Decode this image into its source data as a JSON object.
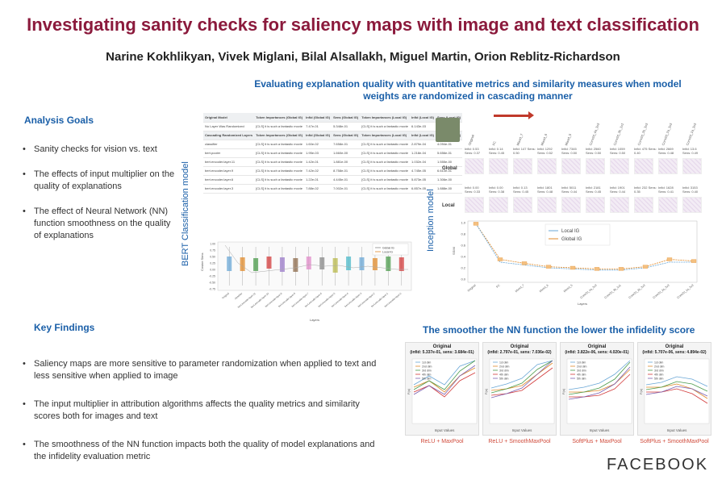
{
  "header": {
    "title": "Investigating sanity checks for saliency maps with image and text classification",
    "authors": "Narine Kokhlikyan, Vivek Miglani, Bilal Alsallakh, Miguel Martin, Orion Reblitz-Richardson",
    "subtitle": "Evaluating explanation quality with quantitative metrics and similarity measures when model weights are randomized in cascading manner"
  },
  "analysis_goals": {
    "heading": "Analysis Goals",
    "items": [
      "Sanity checks for vision vs. text",
      "The effects of input multiplier on the quality of explanations",
      "The effect of Neural Network (NN) function smoothness on the quality of explanations"
    ]
  },
  "key_findings": {
    "heading": "Key Findings",
    "items": [
      "Saliency maps are more sensitive to parameter randomization when applied to text and less sensitive when applied to image",
      "The input multiplier in attribution algorithms affects the quality metrics and similarity scores both for images and text",
      "The smoothness of the NN function impacts both the quality of model explanations and the infidelity evaluation metric"
    ]
  },
  "bert_panel": {
    "side_label": "BERT Classification model",
    "table_headers": [
      "Original Model",
      "Token Importances (Global IG)",
      "Infid (Global IG)",
      "Sens (Global IG)",
      "Token Importances (Local IG)",
      "Infid (Local IG)",
      "Sens (Local IG)"
    ],
    "cascade_header": [
      "Cascading Randomized Layers",
      "Token Importances (Global IG)",
      "Infid (Global IG)",
      "Sens (Global IG)",
      "Token Importances (Local IG)",
      "Infid (Local IG)",
      "Sens (Local IG)"
    ],
    "original_row": [
      "No Layer Was Randomized",
      "[CLS] it is such a fantastic movie",
      "7.47e-01",
      "5.348e-01",
      "[CLS] it is such a fantastic movie",
      "6.143e-03",
      "6.300e-02"
    ],
    "rows": [
      [
        "classifier",
        "[CLS] it is such a fantastic movie",
        "1.60e-02",
        "7.658e-01",
        "[CLS] it is such a fantastic movie",
        "2.879e-04",
        "4.094e-01"
      ],
      [
        "bert.pooler",
        "[CLS] it is such a fantastic movie",
        "1.95e-03",
        "1.660e-00",
        "[CLS] it is such a fantastic movie",
        "1.218e-04",
        "5.656e-01"
      ],
      [
        "bert.encoder.layer.11",
        "[CLS] it is such a fantastic movie",
        "1.42e-01",
        "1.881e-00",
        "[CLS] it is such a fantastic movie",
        "1.032e-04",
        "1.555e-00"
      ],
      [
        "bert.encoder.layer.9",
        "[CLS] it is such a fantastic movie",
        "7.42e-02",
        "8.758e-01",
        "[CLS] it is such a fantastic movie",
        "4.745e-05",
        "6.610e-01"
      ],
      [
        "bert.encoder.layer.6",
        "[CLS] it is such a fantastic movie",
        "1.22e-01",
        "4.445e-01",
        "[CLS] it is such a fantastic movie",
        "5.873e-05",
        "1.306e-00"
      ],
      [
        "bert.encoder.layer.3",
        "[CLS] it is such a fantastic movie",
        "7.88e-02",
        "7.002e-01",
        "[CLS] it is such a fantastic movie",
        "6.857e-05",
        "1.888e-00"
      ]
    ],
    "boxplot": {
      "ylabel": "Cosine Sims",
      "xlabel": "Layers",
      "legend": [
        "Global IG",
        "Local IG"
      ],
      "yticks": [
        "1.00",
        "0.75",
        "0.50",
        "0.25",
        "0.00",
        "-0.25",
        "-0.50",
        "-0.75"
      ],
      "categories": [
        "Original",
        "classifier",
        "bert.encoder.layer.11",
        "bert.encoder.layer.10",
        "bert.encoder.layer.9",
        "bert.encoder.layer.8",
        "bert.encoder.layer.7",
        "bert.encoder.layer.6",
        "bert.encoder.layer.5",
        "bert.encoder.layer.4",
        "bert.encoder.layer.3",
        "bert.encoder.layer.2",
        "bert.encoder.layer.1",
        "bert.encoder.layer.0"
      ]
    }
  },
  "inception_panel": {
    "side_label": "Inception model",
    "row_labels": [
      "Global",
      "Local"
    ],
    "layers": [
      "Original",
      "FC",
      "Mixed_7",
      "Mixed_6",
      "Mixed_5",
      "Conv2d_4a_3x3",
      "Conv2d_3b_1x1",
      "Conv2d_2b_3x3",
      "Conv2d_2a_3x3",
      "Conv2d_1a_3x3"
    ],
    "global_metrics": [
      "Infid: 0.53 Sens: 0.37",
      "Infid: 0.14 Sens: 0.45",
      "Infid: 147 Sens: 0.50",
      "Infid: 1292 Sens: 0.52",
      "Infid: 7345 Sens: 0.50",
      "Infid: 2560 Sens: 0.50",
      "Infid: 1059 Sens: 0.50",
      "Infid: 475 Sens: 0.40",
      "Infid: 2669 Sens: 0.48",
      "Infid: 13.6 Sens: 0.49"
    ],
    "local_metrics": [
      "Infid: 0.00 Sens: 0.33",
      "Infid: 0.00 Sens: 0.38",
      "Infid: 0.13 Sens: 0.45",
      "Infid: 1801 Sens: 0.48",
      "Infid: 5011 Sens: 0.44",
      "Infid: 2181 Sens: 0.45",
      "Infid: 1901 Sens: 0.44",
      "Infid: 232 Sens: 0.35",
      "Infid: 1628 Sens: 0.41",
      "Infid: 3153 Sens: 0.40"
    ],
    "plot": {
      "ylabel": "SSIM",
      "xlabel": "Layers",
      "legend": [
        "Local IG",
        "Global IG"
      ],
      "yticks": [
        "1.0",
        "0.8",
        "0.6",
        "0.4",
        "0.2",
        "0.0"
      ]
    }
  },
  "smoothness": {
    "heading": "The smoother the NN function the lower the infidelity score",
    "legend": [
      "1st dim",
      "2nd dim",
      "3rd dim",
      "4th dim",
      "5th dim"
    ],
    "xlabel": "Input Values",
    "ylabel": "F(x)",
    "plots": [
      {
        "title": "Original",
        "subtitle": "(infid: 5.337e-01, sens: 3.684e-01)",
        "caption": "ReLU + MaxPool"
      },
      {
        "title": "Original",
        "subtitle": "(infid: 2.797e-01, sens: 7.036e-02)",
        "caption": "ReLU + SmoothMaxPool"
      },
      {
        "title": "Original",
        "subtitle": "(infid: 3.822e-06, sens: 4.020e-01)",
        "caption": "SoftPlus + MaxPool"
      },
      {
        "title": "Original",
        "subtitle": "(infid: 5.707e-06, sens: 4.894e-02)",
        "caption": "SoftPlus + SmoothMaxPool"
      }
    ]
  },
  "logo": "FACEBOOK",
  "colors": {
    "title": "#8b1a3c",
    "heading": "#1a5fa8",
    "caption": "#d04a3a",
    "arrow": "#c0392b",
    "line_colors": [
      "#6aa7d6",
      "#e08a2a",
      "#4a9a4a",
      "#d23a3a",
      "#7a5fb0"
    ]
  }
}
